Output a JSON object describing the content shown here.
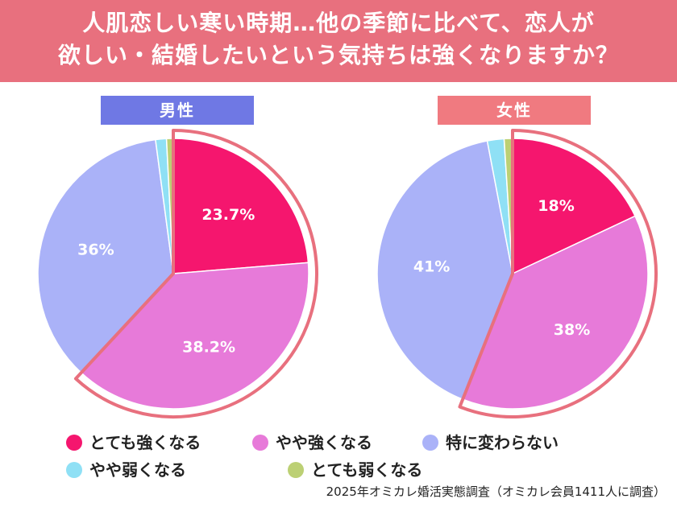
{
  "header": {
    "line1": "人肌恋しい寒い時期…他の季節に比べて、恋人が",
    "line2": "欲しい・結婚したいという気持ちは強くなりますか？"
  },
  "colors": {
    "banner": "#e8707e",
    "highlight": "#e8707e",
    "male_title": "#6f78e4",
    "female_title": "#f07a80"
  },
  "chart_data": [
    {
      "type": "pie",
      "title": "男性",
      "categories": [
        "とても強くなる",
        "やや強くなる",
        "特に変わらない",
        "やや弱くなる",
        "とても弱くなる"
      ],
      "values": [
        23.7,
        38.2,
        36,
        1.3,
        0.8
      ],
      "labels": [
        "23.7%",
        "38.2%",
        "36%",
        "",
        ""
      ],
      "colors": [
        "#f5166e",
        "#e77ad9",
        "#aab2f8",
        "#8fe0f5",
        "#bcd074"
      ],
      "highlighted": [
        "とても強くなる",
        "やや強くなる"
      ]
    },
    {
      "type": "pie",
      "title": "女性",
      "categories": [
        "とても強くなる",
        "やや強くなる",
        "特に変わらない",
        "やや弱くなる",
        "とても弱くなる"
      ],
      "values": [
        18,
        38,
        41,
        2,
        1
      ],
      "labels": [
        "18%",
        "38%",
        "41%",
        "",
        ""
      ],
      "colors": [
        "#f5166e",
        "#e77ad9",
        "#aab2f8",
        "#8fe0f5",
        "#bcd074"
      ],
      "highlighted": [
        "とても強くなる",
        "やや強くなる"
      ]
    }
  ],
  "legend": [
    {
      "label": "とても強くなる",
      "color": "#f5166e"
    },
    {
      "label": "やや強くなる",
      "color": "#e77ad9"
    },
    {
      "label": "特に変わらない",
      "color": "#aab2f8"
    },
    {
      "label": "やや弱くなる",
      "color": "#8fe0f5"
    },
    {
      "label": "とても弱くなる",
      "color": "#bcd074"
    }
  ],
  "source": "2025年オミカレ婚活実態調査（オミカレ会員1411人に調査）"
}
